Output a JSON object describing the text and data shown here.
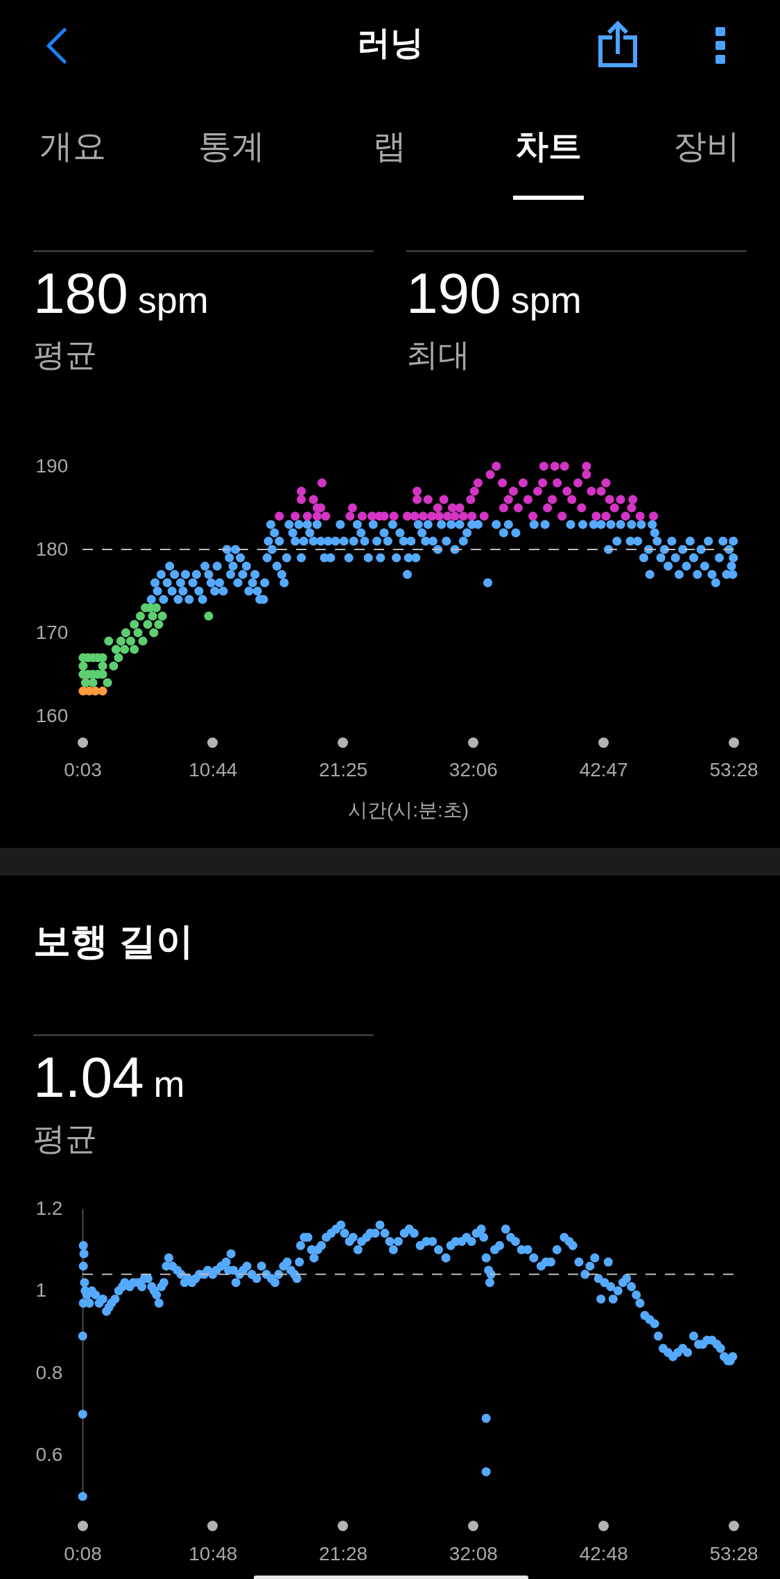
{
  "chart_data": [
    {
      "type": "other",
      "title": "러닝",
      "annotations": [
        "개요",
        "통계",
        "랩",
        "차트",
        "장비"
      ]
    },
    {
      "type": "scatter",
      "annotations": [
        "180 spm",
        "평균",
        "190 spm",
        "최대"
      ],
      "xlabel": "시간(시:분:초)",
      "marker": "circle",
      "xlim": [
        0.05,
        53.4667
      ],
      "ylim": [
        160,
        190
      ],
      "xticks": [
        {
          "value": 0.05,
          "label": "0:03"
        },
        {
          "value": 10.7333,
          "label": "10:44"
        },
        {
          "value": 21.4167,
          "label": "21:25"
        },
        {
          "value": 32.1,
          "label": "32:06"
        },
        {
          "value": 42.7833,
          "label": "42:47"
        },
        {
          "value": 53.4667,
          "label": "53:28"
        }
      ],
      "yticks": [
        160,
        170,
        180,
        190
      ],
      "ref_lines": [
        {
          "axis": "y",
          "value": 180,
          "color": "#bdbdbd",
          "line_style": "dashed"
        }
      ],
      "series": [
        {
          "color": "#ff9a3d",
          "x": [
            0.1,
            0.6,
            1.1,
            1.7
          ],
          "values": [
            163,
            163,
            163,
            163
          ]
        },
        {
          "color": "#5ecf71",
          "x": [
            0.1,
            0.5,
            0.9,
            1.3,
            1.7,
            0.1,
            1.7,
            0.1,
            0.5,
            0.9,
            1.3,
            1.7,
            0.3,
            0.9,
            2.1,
            2.2,
            2.6,
            2.8,
            3.0,
            3.2,
            3.5,
            3.6,
            4.0,
            4.3,
            4.3,
            4.6,
            4.8,
            5.0,
            5.2,
            5.4,
            5.6,
            5.8,
            5.9,
            6.1,
            6.3,
            6.6,
            10.4
          ],
          "values": [
            167,
            167,
            167,
            167,
            167,
            166,
            166,
            165,
            165,
            165,
            165,
            165,
            164,
            164,
            164,
            169,
            166,
            168,
            167,
            169,
            168,
            170,
            169,
            168,
            171,
            170,
            172,
            169,
            173,
            171,
            173,
            172,
            170,
            173,
            171,
            172,
            172
          ]
        },
        {
          "color": "#55aaff",
          "x": [
            5.7,
            6.0,
            6.2,
            6.5,
            6.7,
            7.0,
            7.2,
            7.4,
            7.6,
            7.9,
            8.1,
            8.3,
            8.5,
            8.8,
            9.1,
            9.4,
            9.6,
            9.9,
            10.1,
            10.4,
            10.6,
            10.9,
            11.1,
            11.3,
            11.6,
            11.9,
            12.1,
            12.2,
            12.4,
            12.6,
            12.8,
            13.0,
            13.2,
            13.5,
            13.7,
            14.0,
            14.2,
            14.4,
            14.6,
            14.9,
            15.0,
            15.2,
            15.3,
            15.5,
            15.6,
            15.8,
            16.0,
            16.2,
            16.4,
            16.6,
            16.8,
            17.0,
            17.3,
            17.5,
            17.8,
            18.0,
            18.2,
            18.5,
            18.7,
            19.0,
            19.3,
            19.6,
            19.9,
            20.2,
            20.4,
            20.8,
            21.2,
            21.5,
            21.9,
            22.3,
            22.6,
            22.9,
            23.2,
            23.5,
            23.9,
            24.2,
            24.5,
            24.8,
            25.1,
            25.5,
            25.8,
            26.1,
            26.4,
            26.7,
            26.8,
            27.0,
            27.4,
            27.6,
            27.9,
            28.2,
            28.4,
            28.8,
            29.2,
            29.5,
            29.9,
            30.3,
            30.6,
            31.0,
            31.3,
            31.6,
            32.0,
            32.5,
            33.3,
            34.0,
            34.6,
            35.0,
            35.6,
            37.1,
            38.0,
            40.1,
            41.1,
            42.0,
            42.6,
            43.2,
            43.4,
            43.9,
            44.2,
            45.0,
            45.1,
            45.6,
            45.9,
            46.1,
            46.5,
            46.6,
            46.8,
            47.0,
            47.2,
            47.5,
            47.8,
            48.1,
            48.4,
            48.7,
            49.0,
            49.3,
            49.6,
            49.9,
            50.2,
            50.5,
            50.8,
            51.1,
            51.4,
            51.7,
            52.0,
            52.3,
            52.6,
            52.9,
            53.1,
            53.3,
            53.45,
            53.45,
            53.4
          ],
          "values": [
            174,
            176,
            175,
            177,
            174,
            176,
            178,
            175,
            177,
            174,
            176,
            175,
            177,
            174,
            176,
            177,
            175,
            174,
            178,
            177,
            176,
            175,
            178,
            176,
            175,
            180,
            179,
            177,
            178,
            180,
            176,
            179,
            177,
            178,
            175,
            176,
            177,
            175,
            174,
            174,
            176,
            179,
            181,
            183,
            180,
            182,
            178,
            181,
            177,
            176,
            179,
            183,
            182,
            181,
            183,
            179,
            181,
            183,
            182,
            181,
            183,
            181,
            179,
            181,
            179,
            181,
            183,
            181,
            179,
            181,
            183,
            182,
            181,
            179,
            183,
            181,
            179,
            182,
            181,
            183,
            179,
            182,
            181,
            177,
            179,
            181,
            179,
            183,
            182,
            181,
            183,
            181,
            180,
            183,
            181,
            183,
            180,
            183,
            181,
            182,
            183,
            183,
            176,
            183,
            182,
            183,
            182,
            183,
            183,
            183,
            183,
            183,
            183,
            180,
            183,
            181,
            183,
            181,
            183,
            181,
            183,
            179,
            180,
            177,
            183,
            182,
            181,
            179,
            180,
            178,
            181,
            179,
            177,
            180,
            178,
            181,
            179,
            177,
            180,
            178,
            181,
            177,
            176,
            179,
            181,
            177,
            180,
            178,
            179,
            181,
            177
          ]
        },
        {
          "color": "#d435c4",
          "x": [
            16.2,
            17.5,
            18.0,
            18.0,
            18.5,
            19.0,
            19.3,
            19.3,
            19.6,
            19.7,
            20.0,
            22.0,
            22.2,
            23.0,
            23.8,
            24.4,
            24.8,
            25.6,
            26.7,
            27.3,
            27.5,
            27.5,
            28.0,
            28.4,
            28.7,
            29.2,
            29.3,
            29.7,
            30.0,
            30.4,
            30.6,
            31.0,
            31.3,
            31.9,
            32.0,
            32.2,
            32.5,
            33.0,
            33.5,
            34.0,
            34.5,
            34.6,
            35.0,
            35.4,
            35.8,
            36.2,
            36.6,
            37.0,
            37.4,
            37.8,
            37.9,
            38.2,
            38.6,
            38.8,
            39.0,
            39.4,
            39.6,
            39.8,
            40.2,
            40.7,
            41.0,
            41.4,
            41.4,
            41.8,
            42.2,
            42.6,
            43.0,
            43.0,
            43.3,
            43.7,
            44.2,
            44.6,
            45.1,
            45.2,
            45.8,
            46.9
          ],
          "values": [
            184,
            184,
            187,
            186,
            184,
            186,
            185,
            184,
            185,
            188,
            184,
            184,
            185,
            184,
            184,
            184,
            184,
            184,
            184,
            184,
            187,
            186,
            184,
            186,
            184,
            185,
            184,
            186,
            184,
            185,
            184,
            185,
            184,
            186,
            184,
            187,
            188,
            184,
            189,
            190,
            188,
            185,
            186,
            187,
            185,
            188,
            186,
            184,
            187,
            188,
            190,
            185,
            186,
            190,
            188,
            184,
            190,
            187,
            186,
            188,
            185,
            190,
            189,
            187,
            184,
            187,
            188,
            184,
            186,
            185,
            186,
            184,
            185,
            186,
            184,
            184
          ]
        }
      ]
    },
    {
      "type": "scatter",
      "title": "보행 길이",
      "annotations": [
        "1.04 m",
        "평균"
      ],
      "marker": "circle",
      "xlim": [
        0.1333,
        53.4667
      ],
      "ylim": [
        0.5,
        1.2
      ],
      "xticks": [
        {
          "value": 0.1333,
          "label": "0:08"
        },
        {
          "value": 10.8,
          "label": "10:48"
        },
        {
          "value": 21.4667,
          "label": "21:28"
        },
        {
          "value": 32.1333,
          "label": "32:08"
        },
        {
          "value": 42.8,
          "label": "42:48"
        },
        {
          "value": 53.4667,
          "label": "53:28"
        }
      ],
      "yticks": [
        0.6,
        0.8,
        1,
        1.2
      ],
      "ref_lines": [
        {
          "axis": "y",
          "value": 1.04,
          "color": "#bdbdbd",
          "line_style": "dashed"
        }
      ],
      "series": [
        {
          "color": "#55aaff",
          "x": [
            0.15,
            0.15,
            0.15,
            0.2,
            0.25,
            0.2,
            0.3,
            0.2,
            0.35,
            0.5,
            0.7,
            0.9,
            1.2,
            1.5,
            1.8,
            2.1,
            2.3,
            2.5,
            2.8,
            3.1,
            3.4,
            3.6,
            4.0,
            4.3,
            4.7,
            5.0,
            5.2,
            5.5,
            5.8,
            6.0,
            6.2,
            6.4,
            6.6,
            6.8,
            7.0,
            7.2,
            7.5,
            7.9,
            8.2,
            8.5,
            8.8,
            9.1,
            9.4,
            9.7,
            10.1,
            10.4,
            10.8,
            11.1,
            11.5,
            11.9,
            12.1,
            12.3,
            12.5,
            12.7,
            13.0,
            13.3,
            13.6,
            14.0,
            14.4,
            14.8,
            15.2,
            15.6,
            15.9,
            16.2,
            16.6,
            16.9,
            17.2,
            17.5,
            17.7,
            17.9,
            18.0,
            18.3,
            18.6,
            18.9,
            19.1,
            19.4,
            19.7,
            20.1,
            20.5,
            20.9,
            21.3,
            21.6,
            22.0,
            22.3,
            22.7,
            23.0,
            23.4,
            23.7,
            24.1,
            24.5,
            24.9,
            25.3,
            25.6,
            26.0,
            26.5,
            26.9,
            27.3,
            27.8,
            28.3,
            28.8,
            29.3,
            29.9,
            30.3,
            30.7,
            31.2,
            31.6,
            32.0,
            32.4,
            32.8,
            33.0,
            33.2,
            33.2,
            33.2,
            33.4,
            33.5,
            33.6,
            33.9,
            34.3,
            34.8,
            35.2,
            35.6,
            36.1,
            36.6,
            37.1,
            37.7,
            38.1,
            38.5,
            39.0,
            39.6,
            40.0,
            40.3,
            40.8,
            41.3,
            41.7,
            42.1,
            42.4,
            42.6,
            42.9,
            43.2,
            43.4,
            43.6,
            44.0,
            44.4,
            44.7,
            45.1,
            45.5,
            45.8,
            46.2,
            46.6,
            47.0,
            47.3,
            47.7,
            48.1,
            48.5,
            48.9,
            49.3,
            49.7,
            50.2,
            50.6,
            50.95,
            51.3,
            51.7,
            52.1,
            52.4,
            52.7,
            53.0,
            53.2,
            53.4
          ],
          "values": [
            0.89,
            0.7,
            0.5,
            1.11,
            1.09,
            1.06,
            1.02,
            0.97,
            1.0,
            0.99,
            0.97,
            1.0,
            0.99,
            0.97,
            0.98,
            0.95,
            0.96,
            0.97,
            0.98,
            1.0,
            1.01,
            1.02,
            1.01,
            1.02,
            1.02,
            1.01,
            1.03,
            1.03,
            1.01,
            1.0,
            0.99,
            0.97,
            1.01,
            1.02,
            1.06,
            1.08,
            1.06,
            1.05,
            1.04,
            1.02,
            1.03,
            1.02,
            1.03,
            1.04,
            1.04,
            1.05,
            1.04,
            1.05,
            1.06,
            1.07,
            1.05,
            1.09,
            1.05,
            1.02,
            1.04,
            1.05,
            1.06,
            1.04,
            1.03,
            1.06,
            1.04,
            1.03,
            1.02,
            1.04,
            1.06,
            1.07,
            1.05,
            1.04,
            1.03,
            1.07,
            1.11,
            1.13,
            1.13,
            1.1,
            1.08,
            1.1,
            1.11,
            1.13,
            1.14,
            1.15,
            1.16,
            1.14,
            1.12,
            1.13,
            1.1,
            1.12,
            1.13,
            1.14,
            1.14,
            1.16,
            1.14,
            1.12,
            1.1,
            1.12,
            1.14,
            1.15,
            1.14,
            1.11,
            1.12,
            1.12,
            1.1,
            1.08,
            1.11,
            1.12,
            1.12,
            1.13,
            1.12,
            1.14,
            1.15,
            1.13,
            1.08,
            0.69,
            0.56,
            1.05,
            1.02,
            1.04,
            1.1,
            1.11,
            1.15,
            1.13,
            1.12,
            1.1,
            1.1,
            1.08,
            1.06,
            1.07,
            1.07,
            1.1,
            1.13,
            1.12,
            1.11,
            1.07,
            1.04,
            1.06,
            1.08,
            1.03,
            0.98,
            1.02,
            1.07,
            1.01,
            0.98,
            1.0,
            1.02,
            1.03,
            1.01,
            0.99,
            0.97,
            0.94,
            0.93,
            0.92,
            0.89,
            0.86,
            0.85,
            0.84,
            0.85,
            0.86,
            0.85,
            0.89,
            0.87,
            0.87,
            0.88,
            0.88,
            0.87,
            0.86,
            0.84,
            0.83,
            0.83,
            0.84
          ]
        }
      ]
    }
  ]
}
